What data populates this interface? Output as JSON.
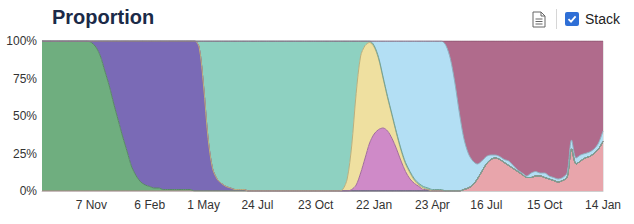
{
  "chart_data": {
    "type": "area",
    "title": "Proportion",
    "annotations": [
      "Stack"
    ],
    "stacked": true,
    "grid": true,
    "tick_labels": true,
    "categories": [
      null,
      null,
      null,
      null,
      null,
      null,
      null,
      null,
      null,
      null,
      null,
      "7 Nov",
      null,
      null,
      null,
      null,
      null,
      null,
      null,
      null,
      null,
      null,
      null,
      null,
      "6 Feb",
      null,
      null,
      null,
      null,
      null,
      null,
      null,
      null,
      null,
      null,
      null,
      "1 May",
      null,
      null,
      null,
      null,
      null,
      null,
      null,
      null,
      null,
      null,
      null,
      "24 Jul",
      null,
      null,
      null,
      null,
      null,
      null,
      null,
      null,
      null,
      null,
      null,
      null,
      "23 Oct",
      null,
      null,
      null,
      null,
      null,
      null,
      null,
      null,
      null,
      null,
      null,
      null,
      "22 Jan",
      null,
      null,
      null,
      null,
      null,
      null,
      null,
      null,
      null,
      null,
      null,
      null,
      "23 Apr",
      null,
      null,
      null,
      null,
      null,
      null,
      null,
      null,
      null,
      null,
      null,
      "16 Jul",
      null,
      null,
      null,
      null,
      null,
      null,
      null,
      null,
      null,
      null,
      null,
      null,
      "15 Oct",
      null,
      null,
      null,
      null,
      null,
      null,
      null,
      null,
      null,
      null,
      null,
      null,
      "14 Jan"
    ],
    "ylim": [
      0,
      100
    ],
    "yticks": [
      {
        "value": 0,
        "label": "0%"
      },
      {
        "value": 25,
        "label": "25%"
      },
      {
        "value": 50,
        "label": "50%"
      },
      {
        "value": 75,
        "label": "75%"
      },
      {
        "value": 100,
        "label": "100%"
      }
    ],
    "series": [
      {
        "color": "#e8a5ab",
        "values": [
          0,
          0,
          0,
          0,
          0,
          0,
          0,
          0,
          0,
          0,
          0,
          0,
          0,
          0,
          0,
          0,
          0,
          0,
          0,
          0,
          0,
          0,
          0,
          0,
          0,
          0,
          0,
          0,
          0,
          0,
          0,
          0,
          0,
          0,
          0,
          0,
          0,
          0,
          0,
          0,
          0,
          0,
          0,
          0,
          0,
          0,
          0,
          0,
          0,
          0,
          0,
          0,
          0,
          0,
          0,
          0,
          0,
          0,
          0,
          0,
          0,
          0,
          0,
          0,
          0,
          0,
          0,
          0,
          0,
          0,
          0,
          0,
          0,
          0,
          0,
          0,
          0,
          0,
          0,
          0,
          0,
          0,
          0,
          0,
          0,
          0,
          0,
          0,
          0,
          0,
          0,
          0,
          0,
          0,
          1,
          2,
          4,
          8,
          13,
          18,
          21,
          22,
          21,
          19,
          17,
          15,
          13,
          11,
          9,
          9,
          10,
          10,
          9,
          8,
          7,
          6,
          7,
          9,
          28,
          18,
          20,
          22,
          23,
          25,
          28,
          33
        ]
      },
      {
        "color": "#6fae7f",
        "values": [
          100,
          100,
          100,
          100,
          100,
          100,
          100,
          100,
          100,
          100,
          100,
          99,
          96,
          90,
          80,
          70,
          58,
          47,
          36,
          26,
          16,
          10,
          6,
          4,
          3,
          2,
          2,
          1,
          1,
          1,
          1,
          1,
          1,
          1,
          0,
          0,
          0,
          0,
          0,
          0,
          0,
          0,
          0,
          0,
          0,
          0,
          0,
          0,
          0,
          0,
          0,
          0,
          0,
          0,
          0,
          0,
          0,
          0,
          0,
          0,
          0,
          0,
          0,
          0,
          0,
          0,
          0,
          0,
          0,
          0,
          0,
          0,
          0,
          0,
          0,
          0,
          0,
          0,
          0,
          0,
          0,
          0,
          0,
          0,
          0,
          0,
          0,
          0,
          0,
          0,
          0,
          0,
          0,
          0,
          0,
          0,
          0,
          0,
          0,
          0,
          0,
          0,
          0,
          0,
          0,
          0,
          0,
          0,
          0,
          0,
          0,
          0,
          0,
          0,
          0,
          0,
          0,
          0,
          0,
          0,
          0,
          0,
          0,
          0,
          0,
          0
        ]
      },
      {
        "color": "#7a6ab6",
        "values": [
          0,
          0,
          0,
          0,
          0,
          0,
          0,
          0,
          0,
          0,
          0,
          1,
          4,
          10,
          20,
          30,
          42,
          53,
          64,
          74,
          84,
          90,
          94,
          96,
          97,
          98,
          98,
          99,
          99,
          99,
          99,
          99,
          99,
          99,
          100,
          96,
          70,
          35,
          15,
          8,
          5,
          3,
          2,
          1,
          1,
          1,
          0,
          0,
          0,
          0,
          0,
          0,
          0,
          0,
          0,
          0,
          0,
          0,
          0,
          0,
          0,
          0,
          0,
          0,
          0,
          0,
          0,
          0,
          0,
          0,
          0,
          0,
          0,
          0,
          0,
          0,
          0,
          0,
          0,
          0,
          0,
          0,
          0,
          0,
          0,
          0,
          0,
          0,
          0,
          0,
          0,
          0,
          0,
          0,
          0,
          0,
          0,
          0,
          0,
          0,
          0,
          0,
          0,
          0,
          0,
          0,
          0,
          0,
          0,
          0,
          0,
          0,
          0,
          0,
          0,
          0,
          0,
          0,
          0,
          0,
          0,
          0,
          0,
          0,
          0,
          0
        ]
      },
      {
        "color": "#cf8ac8",
        "values": [
          0,
          0,
          0,
          0,
          0,
          0,
          0,
          0,
          0,
          0,
          0,
          0,
          0,
          0,
          0,
          0,
          0,
          0,
          0,
          0,
          0,
          0,
          0,
          0,
          0,
          0,
          0,
          0,
          0,
          0,
          0,
          0,
          0,
          0,
          0,
          0,
          0,
          0,
          0,
          0,
          0,
          0,
          0,
          0,
          0,
          0,
          0,
          0,
          0,
          0,
          0,
          0,
          0,
          0,
          0,
          0,
          0,
          0,
          0,
          0,
          0,
          0,
          0,
          0,
          0,
          0,
          0,
          0,
          0,
          1,
          4,
          12,
          22,
          32,
          38,
          41,
          42,
          40,
          35,
          28,
          20,
          13,
          8,
          5,
          3,
          1,
          1,
          0,
          0,
          0,
          0,
          0,
          0,
          0,
          0,
          0,
          0,
          0,
          0,
          0,
          0,
          0,
          0,
          0,
          0,
          0,
          0,
          0,
          0,
          0,
          0,
          0,
          0,
          0,
          0,
          0,
          0,
          0,
          0,
          0,
          0,
          0,
          0,
          0,
          0,
          0
        ]
      },
      {
        "color": "#efe0a0",
        "values": [
          0,
          0,
          0,
          0,
          0,
          0,
          0,
          0,
          0,
          0,
          0,
          0,
          0,
          0,
          0,
          0,
          0,
          0,
          0,
          0,
          0,
          0,
          0,
          0,
          0,
          0,
          0,
          0,
          0,
          0,
          0,
          0,
          0,
          0,
          0,
          0,
          0,
          0,
          0,
          0,
          0,
          0,
          0,
          0,
          0,
          0,
          0,
          0,
          0,
          0,
          0,
          0,
          0,
          0,
          0,
          0,
          0,
          0,
          0,
          0,
          0,
          0,
          0,
          0,
          0,
          0,
          0,
          1,
          8,
          29,
          61,
          78,
          75,
          67,
          58,
          47,
          33,
          22,
          15,
          10,
          7,
          5,
          4,
          2,
          1,
          1,
          0,
          0,
          0,
          0,
          0,
          0,
          0,
          0,
          0,
          0,
          0,
          0,
          0,
          0,
          0,
          0,
          0,
          0,
          0,
          0,
          0,
          0,
          0,
          0,
          0,
          0,
          0,
          0,
          0,
          0,
          0,
          0,
          0,
          0,
          0,
          0,
          0,
          0,
          0,
          0
        ]
      },
      {
        "color": "#8ed1c1",
        "values": [
          0,
          0,
          0,
          0,
          0,
          0,
          0,
          0,
          0,
          0,
          0,
          0,
          0,
          0,
          0,
          0,
          0,
          0,
          0,
          0,
          0,
          0,
          0,
          0,
          0,
          0,
          0,
          0,
          0,
          0,
          0,
          0,
          0,
          0,
          0,
          4,
          30,
          65,
          85,
          92,
          95,
          97,
          98,
          99,
          99,
          99,
          100,
          100,
          100,
          100,
          100,
          100,
          100,
          100,
          100,
          100,
          100,
          100,
          100,
          100,
          100,
          100,
          100,
          100,
          100,
          100,
          100,
          99,
          92,
          70,
          35,
          10,
          3,
          1,
          1,
          1,
          1,
          1,
          1,
          1,
          1,
          1,
          1,
          1,
          1,
          1,
          1,
          1,
          1,
          1,
          0,
          0,
          0,
          0,
          0,
          0,
          0,
          0,
          0,
          0,
          0,
          0,
          0,
          0,
          0,
          0,
          0,
          0,
          0,
          0,
          0,
          0,
          0,
          0,
          0,
          0,
          0,
          0,
          0,
          0,
          0,
          0,
          0,
          0,
          0,
          0
        ]
      },
      {
        "color": "#b3dff4",
        "values": [
          0,
          0,
          0,
          0,
          0,
          0,
          0,
          0,
          0,
          0,
          0,
          0,
          0,
          0,
          0,
          0,
          0,
          0,
          0,
          0,
          0,
          0,
          0,
          0,
          0,
          0,
          0,
          0,
          0,
          0,
          0,
          0,
          0,
          0,
          0,
          0,
          0,
          0,
          0,
          0,
          0,
          0,
          0,
          0,
          0,
          0,
          0,
          0,
          0,
          0,
          0,
          0,
          0,
          0,
          0,
          0,
          0,
          0,
          0,
          0,
          0,
          0,
          0,
          0,
          0,
          0,
          0,
          0,
          0,
          0,
          0,
          0,
          0,
          0,
          3,
          11,
          24,
          37,
          49,
          61,
          72,
          81,
          87,
          92,
          95,
          97,
          98,
          99,
          99,
          99,
          97,
          88,
          72,
          52,
          34,
          23,
          16,
          10,
          7,
          5,
          3,
          2,
          2,
          2,
          3,
          2,
          1,
          1,
          1,
          3,
          3,
          2,
          3,
          2,
          2,
          2,
          2,
          3,
          6,
          4,
          4,
          3,
          3,
          3,
          4,
          7
        ]
      },
      {
        "color": "#b06b8c",
        "values": [
          0,
          0,
          0,
          0,
          0,
          0,
          0,
          0,
          0,
          0,
          0,
          0,
          0,
          0,
          0,
          0,
          0,
          0,
          0,
          0,
          0,
          0,
          0,
          0,
          0,
          0,
          0,
          0,
          0,
          0,
          0,
          0,
          0,
          0,
          0,
          0,
          0,
          0,
          0,
          0,
          0,
          0,
          0,
          0,
          0,
          0,
          0,
          0,
          0,
          0,
          0,
          0,
          0,
          0,
          0,
          0,
          0,
          0,
          0,
          0,
          0,
          0,
          0,
          0,
          0,
          0,
          0,
          0,
          0,
          0,
          0,
          0,
          0,
          0,
          0,
          0,
          0,
          0,
          0,
          0,
          0,
          0,
          0,
          0,
          0,
          0,
          0,
          0,
          0,
          0,
          3,
          12,
          28,
          48,
          65,
          75,
          80,
          82,
          80,
          77,
          76,
          76,
          77,
          79,
          80,
          83,
          86,
          88,
          90,
          88,
          87,
          88,
          88,
          90,
          91,
          92,
          91,
          88,
          66,
          78,
          76,
          75,
          74,
          72,
          68,
          60
        ]
      }
    ]
  }
}
